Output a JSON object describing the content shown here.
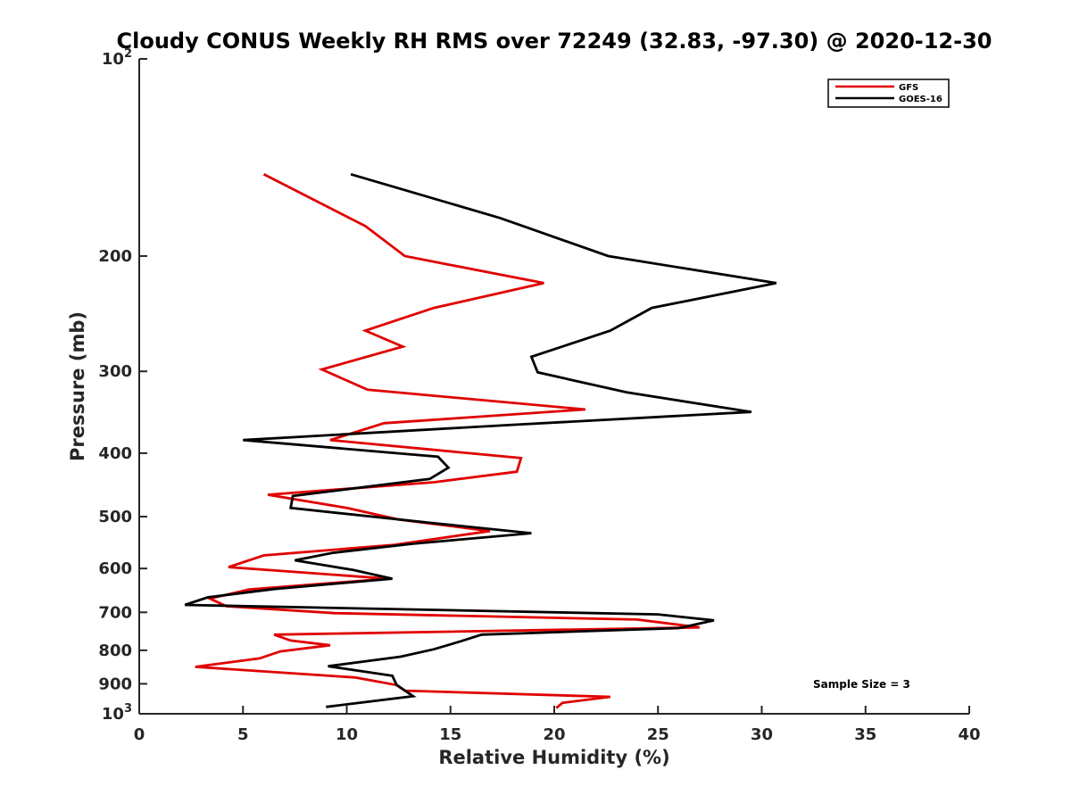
{
  "chart_data": {
    "type": "line",
    "title": "Cloudy CONUS Weekly RH RMS over 72249 (32.83, -97.30) @ 2020-12-30",
    "xlabel": "Relative Humidity (%)",
    "ylabel": "Pressure (mb)",
    "xlim": [
      0,
      40
    ],
    "ylim": [
      100,
      1000
    ],
    "y_scale": "log",
    "y_reversed": true,
    "x_ticks": [
      "0",
      "5",
      "10",
      "15",
      "20",
      "25",
      "30",
      "35",
      "40"
    ],
    "y_ticks": [
      {
        "value": 100,
        "base": "10",
        "exp": "2"
      },
      {
        "value": 200,
        "label": "200"
      },
      {
        "value": 300,
        "label": "300"
      },
      {
        "value": 400,
        "label": "400"
      },
      {
        "value": 500,
        "label": "500"
      },
      {
        "value": 600,
        "label": "600"
      },
      {
        "value": 700,
        "label": "700"
      },
      {
        "value": 800,
        "label": "800"
      },
      {
        "value": 900,
        "label": "900"
      },
      {
        "value": 1000,
        "base": "10",
        "exp": "3"
      }
    ],
    "grid": false,
    "legend_position": "top-right",
    "series": [
      {
        "name": "GFS",
        "color": "#e00000",
        "points": [
          [
            6.0,
            150
          ],
          [
            10.9,
            180
          ],
          [
            12.8,
            200
          ],
          [
            19.5,
            220
          ],
          [
            14.2,
            240
          ],
          [
            10.9,
            260
          ],
          [
            12.7,
            275
          ],
          [
            8.8,
            298
          ],
          [
            11.0,
            320
          ],
          [
            21.5,
            343
          ],
          [
            11.8,
            360
          ],
          [
            9.2,
            382
          ],
          [
            18.4,
            407
          ],
          [
            18.2,
            427
          ],
          [
            14.2,
            443
          ],
          [
            6.2,
            463
          ],
          [
            10.0,
            485
          ],
          [
            12.5,
            505
          ],
          [
            16.9,
            526
          ],
          [
            12.3,
            552
          ],
          [
            6.0,
            573
          ],
          [
            4.3,
            597
          ],
          [
            12.0,
            622
          ],
          [
            5.3,
            646
          ],
          [
            3.4,
            667
          ],
          [
            4.2,
            685
          ],
          [
            9.4,
            702
          ],
          [
            24.0,
            718
          ],
          [
            27.0,
            738
          ],
          [
            6.5,
            757
          ],
          [
            7.3,
            773
          ],
          [
            9.2,
            786
          ],
          [
            6.8,
            803
          ],
          [
            5.8,
            823
          ],
          [
            2.7,
            848
          ],
          [
            10.4,
            880
          ],
          [
            12.4,
            904
          ],
          [
            12.8,
            922
          ],
          [
            22.7,
            942
          ],
          [
            20.4,
            962
          ],
          [
            20.1,
            980
          ]
        ]
      },
      {
        "name": "GOES-16",
        "color": "#000000",
        "points": [
          [
            10.2,
            150
          ],
          [
            17.4,
            175
          ],
          [
            22.6,
            200
          ],
          [
            30.7,
            220
          ],
          [
            24.7,
            240
          ],
          [
            22.7,
            260
          ],
          [
            18.9,
            285
          ],
          [
            19.2,
            301
          ],
          [
            23.5,
            323
          ],
          [
            29.5,
            346
          ],
          [
            18.0,
            362
          ],
          [
            5.0,
            382
          ],
          [
            14.4,
            405
          ],
          [
            14.9,
            421
          ],
          [
            14.0,
            438
          ],
          [
            7.4,
            465
          ],
          [
            7.3,
            485
          ],
          [
            14.3,
            512
          ],
          [
            18.9,
            530
          ],
          [
            13.2,
            550
          ],
          [
            9.3,
            568
          ],
          [
            7.5,
            583
          ],
          [
            10.3,
            603
          ],
          [
            12.2,
            622
          ],
          [
            6.5,
            645
          ],
          [
            3.3,
            664
          ],
          [
            2.2,
            682
          ],
          [
            25.0,
            705
          ],
          [
            27.7,
            720
          ],
          [
            26.0,
            740
          ],
          [
            16.5,
            757
          ],
          [
            15.5,
            775
          ],
          [
            14.2,
            797
          ],
          [
            12.6,
            818
          ],
          [
            9.1,
            846
          ],
          [
            12.2,
            875
          ],
          [
            12.4,
            903
          ],
          [
            13.2,
            940
          ],
          [
            9.0,
            976
          ]
        ]
      }
    ],
    "annotations": [
      "Sample Size = 3"
    ]
  }
}
